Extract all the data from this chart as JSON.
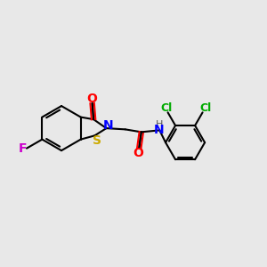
{
  "bg_color": "#e8e8e8",
  "bond_color": "#000000",
  "bond_width": 1.5,
  "figsize": [
    3.0,
    3.0
  ],
  "dpi": 100,
  "colors": {
    "O": "#ff0000",
    "N": "#0000ff",
    "S": "#ccaa00",
    "F": "#cc00cc",
    "Cl": "#00aa00",
    "H": "#555555",
    "bond": "#000000"
  }
}
